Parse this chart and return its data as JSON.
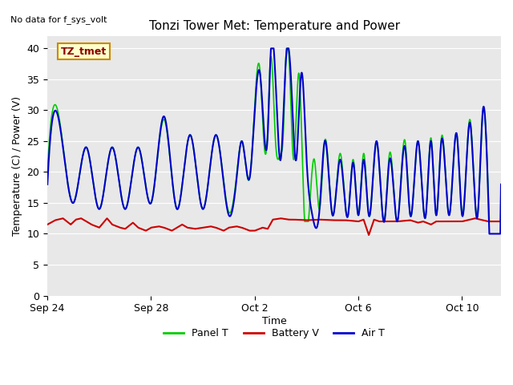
{
  "title": "Tonzi Tower Met: Temperature and Power",
  "top_left_text": "No data for f_sys_volt",
  "xlabel": "Time",
  "ylabel": "Temperature (C) / Power (V)",
  "ylim": [
    0,
    42
  ],
  "yticks": [
    0,
    5,
    10,
    15,
    20,
    25,
    30,
    35,
    40
  ],
  "background_color": "#e8e8e8",
  "annotation_label": "TZ_tmet",
  "annotation_bg": "#ffffcc",
  "annotation_border": "#cc8800",
  "legend_entries": [
    "Panel T",
    "Battery V",
    "Air T"
  ],
  "line_colors": {
    "panel_t": "#00cc00",
    "battery_v": "#cc0000",
    "air_t": "#0000cc"
  },
  "x_tick_labels": [
    "Sep 24",
    "Sep 28",
    "Oct 2",
    "Oct 6",
    "Oct 10"
  ],
  "x_tick_positions": [
    0,
    4,
    8,
    12,
    16
  ],
  "xlim": [
    0,
    17.5
  ]
}
